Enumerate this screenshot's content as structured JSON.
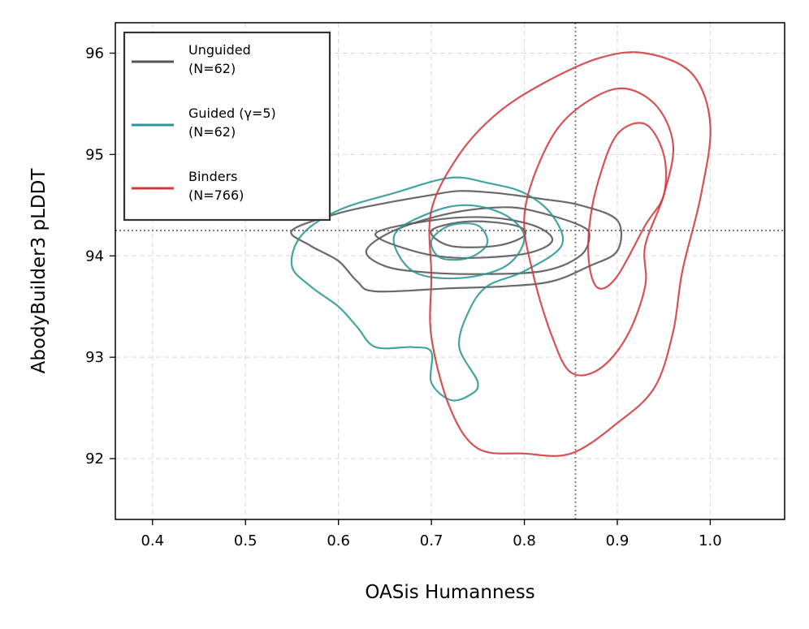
{
  "chart_data": {
    "type": "contour",
    "title": "",
    "xlabel": "OASis Humanness",
    "ylabel": "AbodyBuilder3 pLDDT",
    "xlim": [
      0.36,
      1.08
    ],
    "ylim": [
      91.4,
      96.3
    ],
    "xticks": [
      0.4,
      0.5,
      0.6,
      0.7,
      0.8,
      0.9,
      1.0
    ],
    "xtick_labels": [
      "0.4",
      "0.5",
      "0.6",
      "0.7",
      "0.8",
      "0.9",
      "1.0"
    ],
    "yticks": [
      92,
      93,
      94,
      95,
      96
    ],
    "ytick_labels": [
      "92",
      "93",
      "94",
      "95",
      "96"
    ],
    "grid": true,
    "reference_lines": {
      "x": 0.855,
      "y": 94.25
    },
    "legend_position": "top-left",
    "series": [
      {
        "name": "Unguided",
        "n_label": "(N=62)",
        "color": "#555555",
        "contours": [
          [
            [
              0.55,
              94.25
            ],
            [
              0.6,
              94.42
            ],
            [
              0.65,
              94.52
            ],
            [
              0.7,
              94.6
            ],
            [
              0.73,
              94.64
            ],
            [
              0.77,
              94.62
            ],
            [
              0.82,
              94.56
            ],
            [
              0.86,
              94.5
            ],
            [
              0.9,
              94.35
            ],
            [
              0.9,
              94.05
            ],
            [
              0.87,
              93.9
            ],
            [
              0.83,
              93.75
            ],
            [
              0.78,
              93.7
            ],
            [
              0.72,
              93.68
            ],
            [
              0.64,
              93.65
            ],
            [
              0.62,
              93.75
            ],
            [
              0.6,
              93.95
            ],
            [
              0.57,
              94.1
            ],
            [
              0.55,
              94.25
            ]
          ],
          [
            [
              0.66,
              94.25
            ],
            [
              0.72,
              94.42
            ],
            [
              0.78,
              94.48
            ],
            [
              0.82,
              94.42
            ],
            [
              0.86,
              94.3
            ],
            [
              0.87,
              94.2
            ],
            [
              0.86,
              94.0
            ],
            [
              0.82,
              93.85
            ],
            [
              0.75,
              93.82
            ],
            [
              0.69,
              93.84
            ],
            [
              0.65,
              93.9
            ],
            [
              0.63,
              94.05
            ],
            [
              0.66,
              94.25
            ]
          ],
          [
            [
              0.64,
              94.22
            ],
            [
              0.7,
              94.35
            ],
            [
              0.76,
              94.38
            ],
            [
              0.81,
              94.3
            ],
            [
              0.83,
              94.15
            ],
            [
              0.8,
              94.02
            ],
            [
              0.73,
              93.98
            ],
            [
              0.68,
              94.05
            ],
            [
              0.64,
              94.22
            ]
          ],
          [
            [
              0.7,
              94.25
            ],
            [
              0.74,
              94.34
            ],
            [
              0.79,
              94.3
            ],
            [
              0.8,
              94.2
            ],
            [
              0.77,
              94.1
            ],
            [
              0.72,
              94.1
            ],
            [
              0.7,
              94.25
            ]
          ]
        ]
      },
      {
        "name": "Guided (γ=5)",
        "n_label": "(N=62)",
        "color": "#2a9792",
        "contours": [
          [
            [
              0.56,
              94.2
            ],
            [
              0.6,
              94.45
            ],
            [
              0.66,
              94.62
            ],
            [
              0.72,
              94.77
            ],
            [
              0.76,
              94.72
            ],
            [
              0.8,
              94.62
            ],
            [
              0.83,
              94.4
            ],
            [
              0.84,
              94.1
            ],
            [
              0.8,
              93.85
            ],
            [
              0.76,
              93.7
            ],
            [
              0.74,
              93.45
            ],
            [
              0.73,
              93.1
            ],
            [
              0.75,
              92.75
            ],
            [
              0.74,
              92.62
            ],
            [
              0.72,
              92.58
            ],
            [
              0.7,
              92.75
            ],
            [
              0.7,
              93.05
            ],
            [
              0.68,
              93.1
            ],
            [
              0.64,
              93.1
            ],
            [
              0.62,
              93.3
            ],
            [
              0.6,
              93.5
            ],
            [
              0.57,
              93.7
            ],
            [
              0.55,
              93.9
            ],
            [
              0.56,
              94.2
            ]
          ],
          [
            [
              0.66,
              94.2
            ],
            [
              0.7,
              94.43
            ],
            [
              0.74,
              94.5
            ],
            [
              0.78,
              94.4
            ],
            [
              0.8,
              94.18
            ],
            [
              0.78,
              93.9
            ],
            [
              0.73,
              93.78
            ],
            [
              0.68,
              93.85
            ],
            [
              0.66,
              94.2
            ]
          ],
          [
            [
              0.7,
              94.15
            ],
            [
              0.72,
              94.3
            ],
            [
              0.75,
              94.3
            ],
            [
              0.76,
              94.12
            ],
            [
              0.74,
              93.98
            ],
            [
              0.71,
              93.98
            ],
            [
              0.7,
              94.15
            ]
          ]
        ]
      },
      {
        "name": "Binders",
        "n_label": "(N=766)",
        "color": "#d03a3e",
        "contours": [
          [
            [
              0.7,
              94.45
            ],
            [
              0.73,
              95.0
            ],
            [
              0.77,
              95.4
            ],
            [
              0.82,
              95.7
            ],
            [
              0.88,
              95.95
            ],
            [
              0.93,
              96.0
            ],
            [
              0.98,
              95.8
            ],
            [
              1.0,
              95.3
            ],
            [
              0.99,
              94.6
            ],
            [
              0.97,
              93.85
            ],
            [
              0.96,
              93.25
            ],
            [
              0.94,
              92.7
            ],
            [
              0.9,
              92.35
            ],
            [
              0.85,
              92.05
            ],
            [
              0.8,
              92.05
            ],
            [
              0.75,
              92.1
            ],
            [
              0.72,
              92.5
            ],
            [
              0.7,
              93.2
            ],
            [
              0.7,
              93.8
            ],
            [
              0.7,
              94.45
            ]
          ],
          [
            [
              0.82,
              95.0
            ],
            [
              0.85,
              95.4
            ],
            [
              0.9,
              95.65
            ],
            [
              0.94,
              95.5
            ],
            [
              0.96,
              95.1
            ],
            [
              0.95,
              94.6
            ],
            [
              0.93,
              94.1
            ],
            [
              0.93,
              93.7
            ],
            [
              0.91,
              93.2
            ],
            [
              0.88,
              92.88
            ],
            [
              0.85,
              92.85
            ],
            [
              0.83,
              93.2
            ],
            [
              0.81,
              93.8
            ],
            [
              0.8,
              94.4
            ],
            [
              0.82,
              95.0
            ]
          ],
          [
            [
              0.88,
              94.75
            ],
            [
              0.9,
              95.2
            ],
            [
              0.93,
              95.3
            ],
            [
              0.95,
              95.0
            ],
            [
              0.95,
              94.6
            ],
            [
              0.93,
              94.3
            ],
            [
              0.9,
              93.8
            ],
            [
              0.88,
              93.68
            ],
            [
              0.87,
              93.9
            ],
            [
              0.87,
              94.3
            ],
            [
              0.88,
              94.75
            ]
          ]
        ]
      }
    ]
  }
}
